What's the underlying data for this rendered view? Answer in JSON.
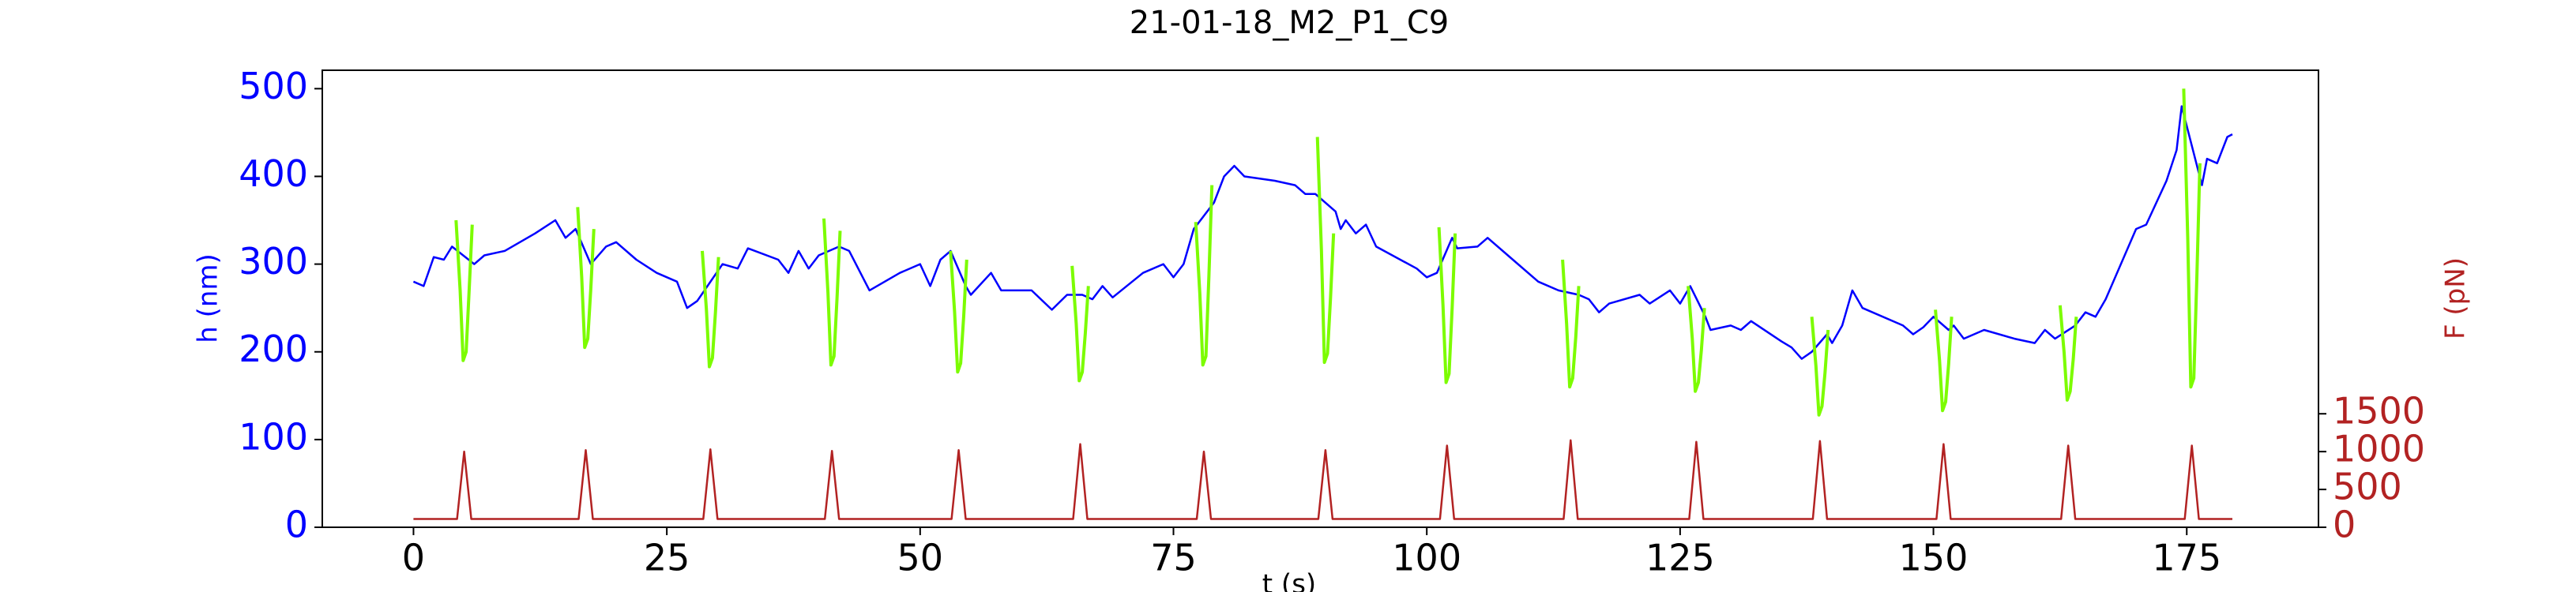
{
  "chart_data": {
    "type": "line",
    "title": "21-01-18_M2_P1_C9",
    "xlabel": "t (s)",
    "ylabel": "h (nm)",
    "y2label": "F (pN)",
    "xlim": [
      -9,
      188
    ],
    "xticks": [
      0,
      25,
      50,
      75,
      100,
      125,
      150,
      175
    ],
    "ylim": [
      0,
      521
    ],
    "yticks": [
      0,
      100,
      200,
      300,
      400,
      500
    ],
    "y2lim": [
      0,
      6040
    ],
    "y2ticks": [
      0,
      500,
      1000,
      1500
    ],
    "ycolor": "#0000ff",
    "y2color": "#b22222",
    "series": [
      {
        "color": "#0000ff",
        "x": [
          0,
          1,
          2,
          3,
          3.8,
          6,
          7,
          9,
          12,
          14,
          15,
          16,
          17.5,
          19,
          20,
          22,
          24,
          26,
          27,
          28,
          30.5,
          32,
          33,
          36,
          37,
          38,
          39,
          40,
          42,
          43,
          45,
          48,
          50,
          51,
          52,
          53,
          54.5,
          55,
          57,
          58,
          61,
          63,
          64.5,
          66,
          67,
          68,
          69,
          72,
          74,
          75,
          76,
          77,
          79,
          80,
          81,
          82,
          85,
          87,
          88,
          89,
          91,
          91.5,
          92,
          93,
          94,
          95,
          99,
          100,
          101,
          102.5,
          103,
          105,
          106,
          108,
          111,
          113,
          115,
          116,
          117,
          118,
          121,
          122,
          124,
          125,
          126,
          127.5,
          128,
          130,
          131,
          132,
          135,
          136,
          137,
          138,
          139.5,
          140,
          141,
          142,
          143,
          147,
          148,
          149,
          150,
          151.5,
          152,
          153,
          155,
          158,
          160,
          161,
          162,
          164,
          165,
          166,
          167,
          170,
          171,
          173,
          174,
          174.5,
          176.5,
          177,
          178,
          179,
          179.5
        ],
        "values": [
          280,
          275,
          308,
          305,
          320,
          300,
          310,
          315,
          335,
          350,
          330,
          340,
          300,
          320,
          325,
          305,
          290,
          280,
          250,
          258,
          300,
          295,
          318,
          305,
          290,
          315,
          295,
          310,
          320,
          315,
          270,
          290,
          300,
          275,
          305,
          315,
          275,
          265,
          290,
          270,
          270,
          248,
          265,
          265,
          260,
          275,
          262,
          290,
          300,
          285,
          300,
          340,
          370,
          400,
          412,
          400,
          395,
          390,
          380,
          380,
          360,
          340,
          350,
          335,
          345,
          320,
          295,
          285,
          290,
          330,
          318,
          320,
          330,
          310,
          280,
          270,
          265,
          260,
          245,
          255,
          265,
          255,
          270,
          255,
          275,
          240,
          225,
          230,
          225,
          235,
          212,
          205,
          192,
          200,
          220,
          210,
          230,
          270,
          250,
          230,
          220,
          228,
          240,
          225,
          230,
          215,
          225,
          215,
          210,
          225,
          215,
          230,
          245,
          240,
          260,
          340,
          345,
          395,
          430,
          480,
          390,
          420,
          415,
          445,
          448
        ]
      },
      {
        "color": "#7cfc00",
        "x": [
          4.2,
          4.6,
          4.9,
          5.2,
          5.5,
          5.8,
          6,
          16.2,
          16.6,
          16.9,
          17.2,
          17.5,
          17.8,
          18,
          28.5,
          28.9,
          29.2,
          29.5,
          29.8,
          30.1,
          30.3,
          40.5,
          40.9,
          41.2,
          41.5,
          41.8,
          42.1,
          42.3,
          53,
          53.4,
          53.7,
          54,
          54.3,
          54.6,
          54.8,
          65,
          65.4,
          65.7,
          66,
          66.3,
          66.6,
          66.8,
          77.2,
          77.6,
          77.9,
          78.2,
          78.5,
          78.8,
          79,
          89.2,
          89.6,
          89.9,
          90.2,
          90.5,
          90.8,
          91,
          101.2,
          101.6,
          101.9,
          102.2,
          102.5,
          102.8,
          103,
          113.4,
          113.8,
          114.1,
          114.4,
          114.7,
          115,
          115.2,
          125.8,
          126.2,
          126.5,
          126.8,
          127.1,
          127.4,
          127.6,
          138,
          138.4,
          138.7,
          139,
          139.3,
          139.6,
          139.8,
          150.2,
          150.6,
          150.9,
          151.2,
          151.5,
          151.8,
          152,
          162.5,
          162.9,
          163.2,
          163.5,
          163.8,
          164.1,
          164.3,
          174.7,
          175.1,
          175.4,
          175.7,
          176,
          176.3
        ],
        "values": [
          350,
          270,
          190,
          200,
          272,
          345,
          null,
          365,
          285,
          205,
          215,
          272,
          340,
          null,
          315,
          249,
          183,
          193,
          245,
          308,
          null,
          352,
          268,
          185,
          195,
          261,
          338,
          null,
          315,
          246,
          177,
          187,
          241,
          305,
          null,
          298,
          232,
          167,
          177,
          221,
          275,
          null,
          348,
          266,
          185,
          195,
          287,
          390,
          null,
          445,
          316,
          188,
          198,
          261,
          335,
          null,
          342,
          253,
          165,
          175,
          250,
          335,
          null,
          305,
          232,
          160,
          170,
          217,
          275,
          null,
          275,
          215,
          155,
          165,
          202,
          250,
          null,
          240,
          184,
          128,
          138,
          176,
          225,
          null,
          248,
          190,
          133,
          143,
          186,
          240,
          null,
          253,
          199,
          145,
          155,
          192,
          240,
          null,
          500,
          330,
          160,
          170,
          287,
          415
        ]
      },
      {
        "color": "#b22222",
        "axis": "y2",
        "x": [
          0,
          4.3,
          5,
          5.7,
          16.3,
          17,
          17.7,
          28.6,
          29.3,
          30,
          40.6,
          41.3,
          42,
          53.1,
          53.8,
          54.5,
          65.1,
          65.8,
          66.5,
          77.3,
          78,
          78.7,
          89.3,
          90,
          90.7,
          101.3,
          102,
          102.7,
          113.5,
          114.2,
          114.9,
          125.9,
          126.6,
          127.3,
          138.1,
          138.8,
          139.5,
          150.3,
          151,
          151.7,
          162.6,
          163.3,
          164,
          174.8,
          175.5,
          176.2,
          179.5
        ],
        "values": [
          110,
          110,
          1000,
          110,
          110,
          1020,
          110,
          110,
          1030,
          110,
          110,
          1010,
          110,
          110,
          1020,
          110,
          110,
          1100,
          110,
          110,
          1000,
          110,
          110,
          1020,
          110,
          110,
          1080,
          110,
          110,
          1150,
          110,
          110,
          1130,
          110,
          110,
          1140,
          110,
          110,
          1100,
          110,
          110,
          1080,
          110,
          110,
          1080,
          110,
          110
        ]
      }
    ]
  }
}
